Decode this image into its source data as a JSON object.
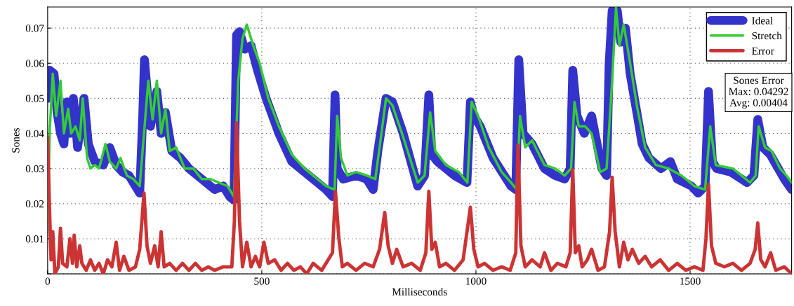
{
  "chart_data": {
    "type": "line",
    "xlabel": "Milliseconds",
    "ylabel": "Sones",
    "xlim": [
      0,
      1737
    ],
    "ylim": [
      0,
      0.076
    ],
    "xticks": [
      0,
      500,
      1000,
      1500
    ],
    "yticks": [
      {
        "value": 0,
        "label": null
      },
      0.01,
      0.02,
      0.03,
      0.04,
      0.05,
      0.06,
      0.07
    ],
    "grid": true,
    "legend": "top right",
    "line_style": "solid",
    "annotations": [
      "Sones Error\nMax: 0.04292\nAvg: 0.00404"
    ],
    "series": [
      {
        "name": "Ideal",
        "color": "#3333cc",
        "x": [
          0,
          5,
          15,
          22,
          30,
          38,
          45,
          52,
          60,
          70,
          85,
          95,
          110,
          130,
          145,
          160,
          175,
          190,
          205,
          215,
          222,
          226,
          240,
          255,
          265,
          275,
          290,
          310,
          330,
          350,
          370,
          390,
          410,
          425,
          435,
          441,
          448,
          460,
          475,
          490,
          510,
          540,
          570,
          600,
          630,
          650,
          665,
          671,
          676,
          690,
          720,
          745,
          760,
          771,
          790,
          805,
          830,
          864,
          880,
          890,
          897,
          910,
          950,
          979,
          987,
          995,
          1010,
          1040,
          1082,
          1093,
          1100,
          1110,
          1131,
          1160,
          1185,
          1207,
          1220,
          1226,
          1236,
          1253,
          1270,
          1294,
          1305,
          1311,
          1318,
          1330,
          1338,
          1349,
          1360,
          1377,
          1388,
          1404,
          1432,
          1454,
          1470,
          1503,
          1519,
          1535,
          1543,
          1552,
          1562,
          1595,
          1633,
          1649,
          1658,
          1670,
          1687,
          1720,
          1737
        ],
        "values": [
          0.05,
          0.058,
          0.057,
          0.046,
          0.04,
          0.037,
          0.049,
          0.04,
          0.05,
          0.036,
          0.05,
          0.037,
          0.032,
          0.031,
          0.036,
          0.031,
          0.029,
          0.028,
          0.025,
          0.023,
          0.045,
          0.061,
          0.042,
          0.052,
          0.04,
          0.046,
          0.035,
          0.033,
          0.03,
          0.028,
          0.026,
          0.024,
          0.025,
          0.022,
          0.021,
          0.068,
          0.069,
          0.064,
          0.065,
          0.058,
          0.05,
          0.04,
          0.032,
          0.029,
          0.026,
          0.024,
          0.022,
          0.051,
          0.03,
          0.027,
          0.028,
          0.027,
          0.024,
          0.035,
          0.05,
          0.049,
          0.04,
          0.025,
          0.028,
          0.051,
          0.034,
          0.032,
          0.028,
          0.026,
          0.049,
          0.045,
          0.042,
          0.033,
          0.025,
          0.024,
          0.061,
          0.04,
          0.037,
          0.03,
          0.028,
          0.027,
          0.03,
          0.058,
          0.045,
          0.04,
          0.045,
          0.03,
          0.028,
          0.06,
          0.075,
          0.075,
          0.066,
          0.07,
          0.057,
          0.045,
          0.037,
          0.033,
          0.03,
          0.032,
          0.027,
          0.025,
          0.023,
          0.025,
          0.052,
          0.032,
          0.03,
          0.029,
          0.026,
          0.028,
          0.044,
          0.036,
          0.034,
          0.027,
          0.024
        ]
      },
      {
        "name": "Stretch",
        "color": "#33cc33",
        "x": [
          0,
          5,
          12,
          20,
          30,
          38,
          48,
          55,
          65,
          75,
          82,
          92,
          100,
          110,
          120,
          135,
          145,
          160,
          170,
          185,
          200,
          215,
          225,
          235,
          245,
          255,
          265,
          275,
          285,
          300,
          320,
          340,
          360,
          380,
          400,
          420,
          435,
          445,
          455,
          465,
          480,
          495,
          515,
          540,
          570,
          600,
          630,
          650,
          670,
          676,
          685,
          700,
          720,
          745,
          765,
          775,
          790,
          805,
          830,
          864,
          880,
          893,
          905,
          930,
          960,
          980,
          990,
          1005,
          1030,
          1060,
          1082,
          1095,
          1103,
          1115,
          1131,
          1160,
          1185,
          1207,
          1222,
          1230,
          1240,
          1255,
          1270,
          1290,
          1305,
          1318,
          1327,
          1335,
          1345,
          1360,
          1377,
          1395,
          1420,
          1450,
          1480,
          1510,
          1535,
          1547,
          1560,
          1600,
          1640,
          1653,
          1660,
          1675,
          1690,
          1710,
          1725,
          1737
        ],
        "values": [
          0.016,
          0.041,
          0.057,
          0.045,
          0.055,
          0.04,
          0.047,
          0.04,
          0.042,
          0.038,
          0.05,
          0.033,
          0.03,
          0.031,
          0.03,
          0.037,
          0.032,
          0.03,
          0.033,
          0.028,
          0.027,
          0.025,
          0.04,
          0.055,
          0.044,
          0.055,
          0.04,
          0.047,
          0.035,
          0.036,
          0.03,
          0.03,
          0.027,
          0.027,
          0.026,
          0.025,
          0.022,
          0.055,
          0.067,
          0.071,
          0.065,
          0.06,
          0.05,
          0.042,
          0.034,
          0.03,
          0.027,
          0.025,
          0.024,
          0.045,
          0.033,
          0.028,
          0.029,
          0.028,
          0.027,
          0.036,
          0.05,
          0.048,
          0.039,
          0.026,
          0.028,
          0.046,
          0.035,
          0.031,
          0.029,
          0.026,
          0.049,
          0.045,
          0.036,
          0.029,
          0.026,
          0.024,
          0.045,
          0.036,
          0.038,
          0.031,
          0.03,
          0.028,
          0.03,
          0.049,
          0.042,
          0.042,
          0.04,
          0.029,
          0.03,
          0.055,
          0.076,
          0.065,
          0.071,
          0.06,
          0.047,
          0.036,
          0.031,
          0.03,
          0.028,
          0.025,
          0.024,
          0.042,
          0.031,
          0.03,
          0.026,
          0.028,
          0.042,
          0.036,
          0.035,
          0.03,
          0.028,
          0.026
        ]
      },
      {
        "name": "Error",
        "color": "#cc3333",
        "x": [
          0,
          4,
          8,
          12,
          17,
          25,
          30,
          35,
          45,
          52,
          58,
          62,
          68,
          75,
          80,
          90,
          100,
          110,
          120,
          130,
          140,
          150,
          160,
          168,
          178,
          190,
          205,
          215,
          225,
          232,
          240,
          250,
          258,
          265,
          272,
          285,
          300,
          315,
          330,
          345,
          360,
          375,
          390,
          410,
          430,
          436,
          441,
          448,
          455,
          465,
          475,
          485,
          495,
          505,
          515,
          530,
          545,
          560,
          575,
          590,
          605,
          620,
          640,
          655,
          665,
          672,
          680,
          688,
          700,
          720,
          740,
          760,
          775,
          787,
          795,
          805,
          815,
          830,
          850,
          870,
          883,
          890,
          897,
          905,
          915,
          930,
          950,
          970,
          987,
          995,
          1005,
          1020,
          1040,
          1060,
          1080,
          1093,
          1098,
          1105,
          1115,
          1131,
          1150,
          1160,
          1175,
          1190,
          1210,
          1220,
          1226,
          1232,
          1240,
          1248,
          1260,
          1270,
          1285,
          1300,
          1312,
          1318,
          1325,
          1335,
          1345,
          1355,
          1365,
          1380,
          1395,
          1410,
          1430,
          1450,
          1470,
          1490,
          1510,
          1530,
          1537,
          1543,
          1550,
          1560,
          1580,
          1600,
          1620,
          1640,
          1652,
          1658,
          1665,
          1675,
          1688,
          1700,
          1720,
          1737
        ],
        "values": [
          0.039,
          0.02,
          0.004,
          0.012,
          0.0,
          0.002,
          0.013,
          0.003,
          0.002,
          0.01,
          0.003,
          0.011,
          0.002,
          0.008,
          0.003,
          0.001,
          0.004,
          0.001,
          0.003,
          0.0,
          0.004,
          0.002,
          0.009,
          0.001,
          0.005,
          0.001,
          0.002,
          0.007,
          0.023,
          0.008,
          0.003,
          0.008,
          0.002,
          0.012,
          0.002,
          0.003,
          0.001,
          0.003,
          0.001,
          0.003,
          0.001,
          0.002,
          0.001,
          0.002,
          0.002,
          0.015,
          0.043,
          0.015,
          0.002,
          0.009,
          0.002,
          0.005,
          0.002,
          0.009,
          0.003,
          0.004,
          0.001,
          0.003,
          0.001,
          0.002,
          0.0,
          0.003,
          0.001,
          0.004,
          0.006,
          0.0235,
          0.01,
          0.002,
          0.003,
          0.001,
          0.003,
          0.002,
          0.007,
          0.0175,
          0.008,
          0.003,
          0.007,
          0.002,
          0.003,
          0.001,
          0.006,
          0.0235,
          0.007,
          0.009,
          0.002,
          0.003,
          0.001,
          0.004,
          0.019,
          0.007,
          0.002,
          0.003,
          0.001,
          0.002,
          0.001,
          0.006,
          0.0367,
          0.008,
          0.002,
          0.004,
          0.002,
          0.006,
          0.001,
          0.003,
          0.002,
          0.006,
          0.0297,
          0.006,
          0.008,
          0.002,
          0.004,
          0.007,
          0.001,
          0.002,
          0.012,
          0.0275,
          0.012,
          0.002,
          0.009,
          0.004,
          0.007,
          0.003,
          0.005,
          0.002,
          0.004,
          0.001,
          0.003,
          0.001,
          0.002,
          0.001,
          0.01,
          0.0255,
          0.008,
          0.003,
          0.002,
          0.003,
          0.001,
          0.003,
          0.007,
          0.0145,
          0.004,
          0.002,
          0.006,
          0.001,
          0.002,
          0.0
        ]
      }
    ]
  }
}
